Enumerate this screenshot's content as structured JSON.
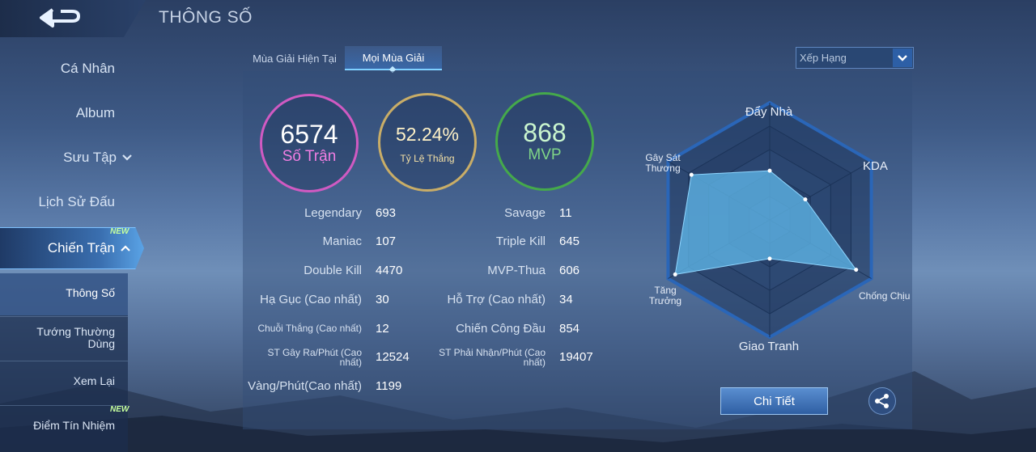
{
  "header": {
    "title": "THÔNG SỐ"
  },
  "sidebar": {
    "items": [
      {
        "label": "Cá Nhân"
      },
      {
        "label": "Album"
      },
      {
        "label": "Sưu Tập"
      },
      {
        "label": "Lịch Sử Đấu"
      },
      {
        "label": "Chiến Trận"
      }
    ],
    "new_badge": "NEW",
    "sub_items": [
      {
        "label": "Thông Số"
      },
      {
        "label": "Tướng Thường Dùng"
      },
      {
        "label": "Xem Lại"
      },
      {
        "label": "Điểm Tín Nhiệm"
      }
    ]
  },
  "tabs": [
    {
      "label": "Mùa Giải Hiện Tại",
      "active": false
    },
    {
      "label": "Mọi Mùa Giải",
      "active": true
    }
  ],
  "dropdown": {
    "value": "Xếp Hạng"
  },
  "summary": {
    "matches": {
      "value": "6574",
      "label": "Số Trận"
    },
    "win_rate": {
      "value": "52.24%",
      "label": "Tỷ Lệ Thắng"
    },
    "mvp": {
      "value": "868",
      "label": "MVP"
    }
  },
  "stats_left": [
    {
      "label": "Legendary",
      "value": "693"
    },
    {
      "label": "Maniac",
      "value": "107"
    },
    {
      "label": "Double Kill",
      "value": "4470"
    },
    {
      "label": "Hạ Gục (Cao nhất)",
      "value": "30"
    },
    {
      "label": "Chuỗi Thắng (Cao nhất)",
      "value": "12"
    },
    {
      "label": "ST Gây Ra/Phút (Cao nhất)",
      "value": "12524"
    },
    {
      "label": "Vàng/Phút(Cao nhất)",
      "value": "1199"
    }
  ],
  "stats_right": [
    {
      "label": "Savage",
      "value": "11"
    },
    {
      "label": "Triple Kill",
      "value": "645"
    },
    {
      "label": "MVP-Thua",
      "value": "606"
    },
    {
      "label": "Hỗ Trợ (Cao nhất)",
      "value": "34"
    },
    {
      "label": "Chiến Công Đầu",
      "value": "854"
    },
    {
      "label": "ST Phải Nhận/Phút (Cao nhất)",
      "value": "19407"
    }
  ],
  "radar": {
    "labels": [
      "Đẩy Nhà",
      "KDA",
      "Chống Chịu",
      "Giao Tranh",
      "Tăng Trưởng",
      "Gây Sát Thương"
    ],
    "values": [
      0.42,
      0.35,
      0.85,
      0.33,
      0.93,
      0.77
    ],
    "fill_color": "#5fb6e8",
    "line_color": "#1a2b4a"
  },
  "buttons": {
    "detail": "Chi Tiết"
  },
  "icons": {
    "back": "back-arrow-icon",
    "share": "share-icon",
    "dropdown": "chevron-down-icon"
  }
}
